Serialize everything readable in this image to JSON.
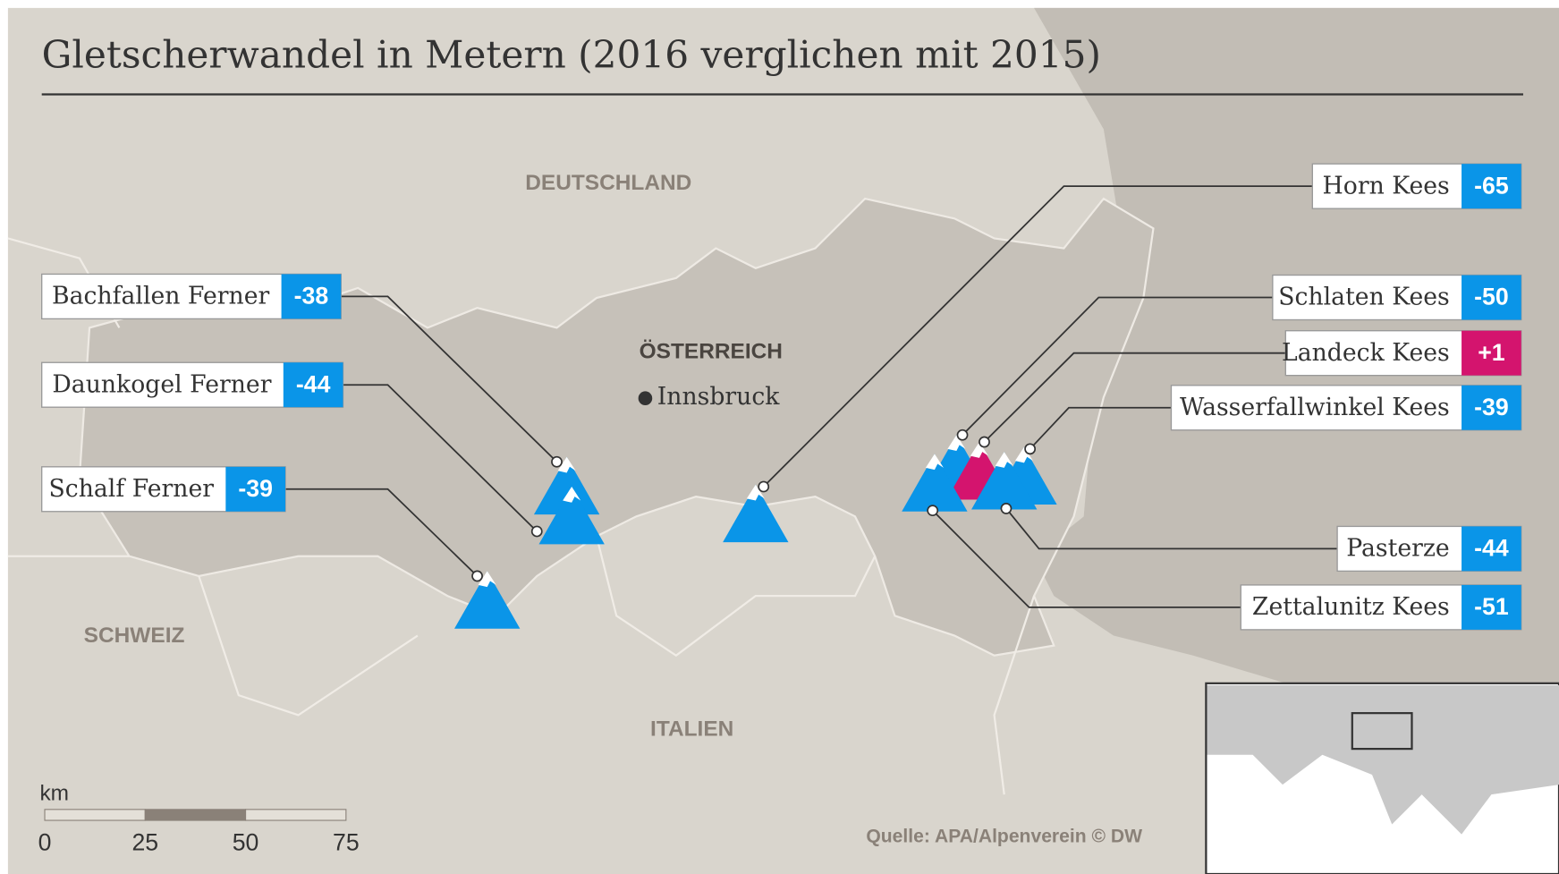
{
  "title": "Gletscherwandel in Metern (2016 verglichen mit 2015)",
  "countries": [
    "DEUTSCHLAND",
    "ÖSTERREICH",
    "SCHWEIZ",
    "ITALIEN"
  ],
  "city": "Innsbruck",
  "glaciers": [
    {
      "name": "Bachfallen Ferner",
      "value": "-38"
    },
    {
      "name": "Daunkogel Ferner",
      "value": "-44"
    },
    {
      "name": "Schalf Ferner",
      "value": "-39"
    },
    {
      "name": "Horn Kees",
      "value": "-65"
    },
    {
      "name": "Schlaten Kees",
      "value": "-50"
    },
    {
      "name": "Landeck Kees",
      "value": "+1"
    },
    {
      "name": "Wasserfallwinkel Kees",
      "value": "-39"
    },
    {
      "name": "Pasterze",
      "value": "-44"
    },
    {
      "name": "Zettalunitz Kees",
      "value": "-51"
    }
  ],
  "scale": {
    "unit": "km",
    "ticks": [
      0,
      25,
      50,
      75
    ]
  },
  "source": "Quelle: APA/Alpenverein © DW"
}
